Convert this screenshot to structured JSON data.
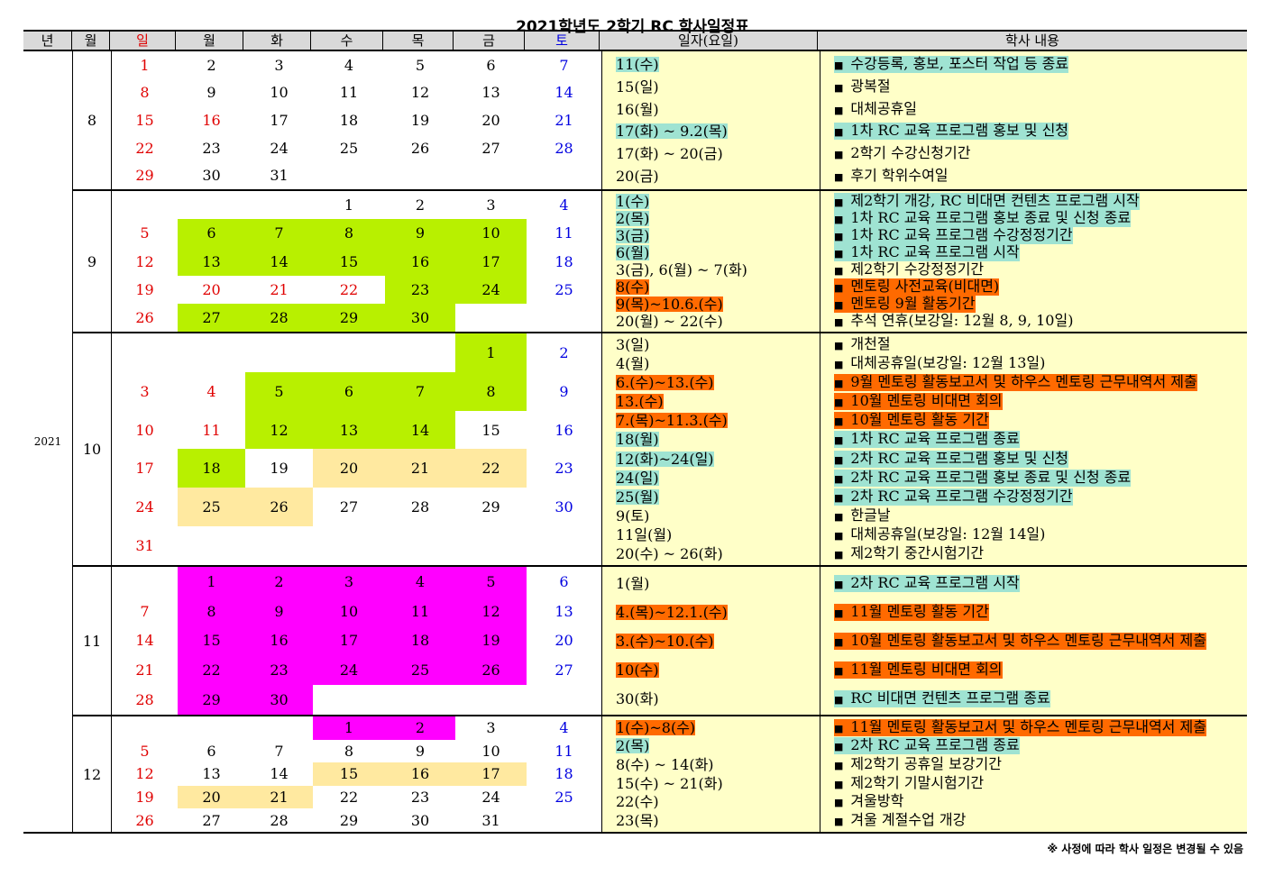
{
  "title": "2021학년도 2학기 RC 학사일정표",
  "headers": [
    "년",
    "월",
    "일",
    "월",
    "화",
    "수",
    "목",
    "금",
    "토",
    "일자(요일)",
    "학사 내용"
  ],
  "year": "2021",
  "colors": {
    "teal": "#9fe3d2",
    "orange": "#ff6a00",
    "green": "#b8f000",
    "yellow": "#ffe9a0",
    "magenta": "#ff00ff"
  },
  "months": [
    {
      "month": "8",
      "weeks": [
        [
          "1",
          "2",
          "3",
          "4",
          "5",
          "6",
          "7"
        ],
        [
          "8",
          "9",
          "10",
          "11",
          "12",
          "13",
          "14"
        ],
        [
          "15",
          "16",
          "17",
          "18",
          "19",
          "20",
          "21"
        ],
        [
          "22",
          "23",
          "24",
          "25",
          "26",
          "27",
          "28"
        ],
        [
          "29",
          "30",
          "31",
          "",
          "",
          "",
          ""
        ]
      ],
      "red_days": [
        "16"
      ],
      "green": [],
      "yellow": [],
      "magenta": [],
      "events": [
        {
          "date": "11(수)",
          "date_hl": "teal",
          "text": "수강등록, 홍보, 포스터 작업 등 종료",
          "hl": "teal"
        },
        {
          "date": "15(일)",
          "date_hl": "",
          "text": "광복절",
          "hl": ""
        },
        {
          "date": "16(월)",
          "date_hl": "",
          "text": "대체공휴일",
          "hl": ""
        },
        {
          "date": "17(화) ~ 9.2(목)",
          "date_hl": "teal",
          "text": "1차 RC 교육 프로그램 홍보 및 신청",
          "hl": "teal"
        },
        {
          "date": "17(화) ~ 20(금)",
          "date_hl": "",
          "text": "2학기 수강신청기간",
          "hl": ""
        },
        {
          "date": "20(금)",
          "date_hl": "",
          "text": "후기 학위수여일",
          "hl": ""
        }
      ]
    },
    {
      "month": "9",
      "weeks": [
        [
          "",
          "",
          "",
          "1",
          "2",
          "3",
          "4"
        ],
        [
          "5",
          "6",
          "7",
          "8",
          "9",
          "10",
          "11"
        ],
        [
          "12",
          "13",
          "14",
          "15",
          "16",
          "17",
          "18"
        ],
        [
          "19",
          "20",
          "21",
          "22",
          "23",
          "24",
          "25"
        ],
        [
          "26",
          "27",
          "28",
          "29",
          "30",
          "",
          ""
        ]
      ],
      "red_days": [
        "20",
        "21",
        "22"
      ],
      "green": [
        "6",
        "7",
        "8",
        "9",
        "10",
        "13",
        "14",
        "15",
        "16",
        "17",
        "23",
        "24",
        "27",
        "28",
        "29",
        "30"
      ],
      "yellow": [],
      "magenta": [],
      "events": [
        {
          "date": "1(수)",
          "date_hl": "teal",
          "text": "제2학기 개강, RC 비대면 컨텐츠 프로그램 시작",
          "hl": "teal"
        },
        {
          "date": "2(목)",
          "date_hl": "teal",
          "text": "1차 RC 교육 프로그램 홍보 종료 및 신청 종료",
          "hl": "teal"
        },
        {
          "date": "3(금)",
          "date_hl": "teal",
          "text": "1차 RC 교육 프로그램 수강정정기간",
          "hl": "teal"
        },
        {
          "date": "6(월)",
          "date_hl": "teal",
          "text": "1차 RC 교육 프로그램 시작",
          "hl": "teal"
        },
        {
          "date": "3(금), 6(월) ~ 7(화)",
          "date_hl": "",
          "text": "제2학기 수강정정기간",
          "hl": ""
        },
        {
          "date": "8(수)",
          "date_hl": "orange",
          "text": "멘토링 사전교육(비대면)",
          "hl": "orange"
        },
        {
          "date": "9(목)~10.6.(수)",
          "date_hl": "orange",
          "text": "멘토링 9월 활동기간",
          "hl": "orange"
        },
        {
          "date": "20(월) ~ 22(수)",
          "date_hl": "",
          "text": "추석 연휴(보강일: 12월 8, 9, 10일)",
          "hl": ""
        }
      ]
    },
    {
      "month": "10",
      "weeks": [
        [
          "",
          "",
          "",
          "",
          "",
          "1",
          "2"
        ],
        [
          "3",
          "4",
          "5",
          "6",
          "7",
          "8",
          "9"
        ],
        [
          "10",
          "11",
          "12",
          "13",
          "14",
          "15",
          "16"
        ],
        [
          "17",
          "18",
          "19",
          "20",
          "21",
          "22",
          "23"
        ],
        [
          "24",
          "25",
          "26",
          "27",
          "28",
          "29",
          "30"
        ],
        [
          "31",
          "",
          "",
          "",
          "",
          "",
          ""
        ]
      ],
      "red_days": [
        "4",
        "11"
      ],
      "green": [
        "1",
        "5",
        "6",
        "7",
        "8",
        "12",
        "13",
        "14",
        "18"
      ],
      "yellow": [
        "20",
        "21",
        "22",
        "25",
        "26"
      ],
      "magenta": [],
      "events": [
        {
          "date": "3(일)",
          "date_hl": "",
          "text": "개천절",
          "hl": ""
        },
        {
          "date": "4(월)",
          "date_hl": "",
          "text": "대체공휴일(보강일: 12월 13일)",
          "hl": ""
        },
        {
          "date": "6.(수)~13.(수)",
          "date_hl": "orange",
          "text": "9월 멘토링 활동보고서 및 하우스 멘토링 근무내역서 제출",
          "hl": "orange"
        },
        {
          "date": "13.(수)",
          "date_hl": "orange",
          "text": "10월 멘토링 비대면 회의",
          "hl": "orange"
        },
        {
          "date": "7.(목)~11.3.(수)",
          "date_hl": "orange",
          "text": "10월 멘토링 활동 기간",
          "hl": "orange"
        },
        {
          "date": "18(월)",
          "date_hl": "teal",
          "text": "1차 RC 교육 프로그램 종료",
          "hl": "teal"
        },
        {
          "date": "12(화)~24(일)",
          "date_hl": "teal",
          "text": "2차 RC 교육 프로그램 홍보 및 신청",
          "hl": "teal"
        },
        {
          "date": "24(일)",
          "date_hl": "teal",
          "text": "2차 RC 교육 프로그램 홍보 종료 및 신청 종료",
          "hl": "teal"
        },
        {
          "date": "25(월)",
          "date_hl": "teal",
          "text": "2차 RC 교육 프로그램 수강정정기간",
          "hl": "teal"
        },
        {
          "date": "9(토)",
          "date_hl": "",
          "text": "한글날",
          "hl": ""
        },
        {
          "date": "11일(월)",
          "date_hl": "",
          "text": "대체공휴일(보강일: 12월 14일)",
          "hl": ""
        },
        {
          "date": "20(수) ~ 26(화)",
          "date_hl": "",
          "text": "제2학기 중간시험기간",
          "hl": ""
        }
      ]
    },
    {
      "month": "11",
      "weeks": [
        [
          "",
          "1",
          "2",
          "3",
          "4",
          "5",
          "6"
        ],
        [
          "7",
          "8",
          "9",
          "10",
          "11",
          "12",
          "13"
        ],
        [
          "14",
          "15",
          "16",
          "17",
          "18",
          "19",
          "20"
        ],
        [
          "21",
          "22",
          "23",
          "24",
          "25",
          "26",
          "27"
        ],
        [
          "28",
          "29",
          "30",
          "",
          "",
          "",
          ""
        ]
      ],
      "red_days": [],
      "green": [],
      "yellow": [],
      "magenta": [
        "1",
        "2",
        "3",
        "4",
        "5",
        "8",
        "9",
        "10",
        "11",
        "12",
        "15",
        "16",
        "17",
        "18",
        "19",
        "22",
        "23",
        "24",
        "25",
        "26",
        "29",
        "30"
      ],
      "events": [
        {
          "date": "1(월)",
          "date_hl": "",
          "text": "2차 RC 교육 프로그램 시작",
          "hl": "teal"
        },
        {
          "date": "4.(목)~12.1.(수)",
          "date_hl": "orange",
          "text": "11월 멘토링 활동 기간",
          "hl": "orange"
        },
        {
          "date": "3.(수)~10.(수)",
          "date_hl": "orange",
          "text": "10월 멘토링 활동보고서 및 하우스 멘토링 근무내역서 제출",
          "hl": "orange"
        },
        {
          "date": "10(수)",
          "date_hl": "orange",
          "text": "11월 멘토링 비대면 회의",
          "hl": "orange"
        },
        {
          "date": "30(화)",
          "date_hl": "",
          "text": "RC 비대면 컨텐츠 프로그램 종료",
          "hl": "teal"
        }
      ]
    },
    {
      "month": "12",
      "weeks": [
        [
          "",
          "",
          "",
          "1",
          "2",
          "3",
          "4"
        ],
        [
          "5",
          "6",
          "7",
          "8",
          "9",
          "10",
          "11"
        ],
        [
          "12",
          "13",
          "14",
          "15",
          "16",
          "17",
          "18"
        ],
        [
          "19",
          "20",
          "21",
          "22",
          "23",
          "24",
          "25"
        ],
        [
          "26",
          "27",
          "28",
          "29",
          "30",
          "31",
          ""
        ]
      ],
      "red_days": [],
      "green": [],
      "yellow": [
        "15",
        "16",
        "17",
        "20",
        "21"
      ],
      "magenta": [
        "1",
        "2"
      ],
      "events": [
        {
          "date": "1(수)~8(수)",
          "date_hl": "orange",
          "text": "11월 멘토링 활동보고서 및 하우스 멘토링 근무내역서 제출",
          "hl": "orange"
        },
        {
          "date": "2(목)",
          "date_hl": "teal",
          "text": "2차 RC 교육 프로그램 종료",
          "hl": "teal"
        },
        {
          "date": "8(수) ~ 14(화)",
          "date_hl": "",
          "text": "제2학기 공휴일 보강기간",
          "hl": ""
        },
        {
          "date": "15(수) ~ 21(화)",
          "date_hl": "",
          "text": "제2학기 기말시험기간",
          "hl": ""
        },
        {
          "date": "22(수)",
          "date_hl": "",
          "text": "겨울방학",
          "hl": ""
        },
        {
          "date": "23(목)",
          "date_hl": "",
          "text": "겨울 계절수업 개강",
          "hl": ""
        }
      ]
    }
  ],
  "note": "※ 사정에 따라 학사 일정은 변경될 수 있음"
}
